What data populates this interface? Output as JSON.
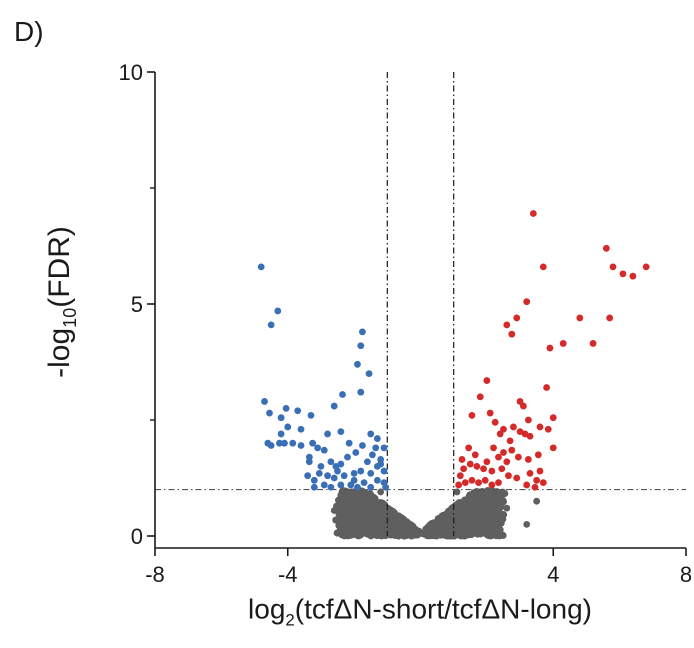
{
  "panel_label": "D)",
  "chart_data": {
    "type": "scatter",
    "title": "",
    "xlabel": {
      "pre": "log",
      "sub": "2",
      "post": "(tcfΔN-short/tcfΔN-long)"
    },
    "ylabel": {
      "pre": "-log",
      "sub": "10",
      "post": "(FDR)"
    },
    "xlim": [
      -8,
      8
    ],
    "ylim": [
      0,
      10
    ],
    "x_ticks": [
      -8,
      -4,
      4,
      8
    ],
    "x_tick_labels": [
      "-8",
      "-4",
      "4",
      "8"
    ],
    "y_ticks": [
      0,
      5,
      10
    ],
    "y_tick_labels": [
      "0",
      "5",
      "10"
    ],
    "y_minor_ticks": [
      2.5,
      7.5
    ],
    "thresholds": {
      "fold_change_x": [
        -1,
        1
      ],
      "fdr_y": 1.0
    },
    "colors": {
      "down": "#3a6fb5",
      "up": "#d42a2a",
      "ns": "#5f5f5f",
      "axis": "#1a1a1a"
    },
    "series": [
      {
        "key": "down",
        "points": [
          [
            -4.8,
            5.8
          ],
          [
            -4.3,
            4.85
          ],
          [
            -4.5,
            4.55
          ],
          [
            -4.7,
            2.9
          ],
          [
            -4.55,
            2.65
          ],
          [
            -4.2,
            2.55
          ],
          [
            -4.05,
            2.75
          ],
          [
            -3.7,
            2.7
          ],
          [
            -3.3,
            2.6
          ],
          [
            -4.6,
            2.0
          ],
          [
            -4.5,
            1.95
          ],
          [
            -4.25,
            2.0
          ],
          [
            -4.1,
            2.0
          ],
          [
            -3.85,
            2.0
          ],
          [
            -4.2,
            2.2
          ],
          [
            -4.0,
            2.35
          ],
          [
            -3.6,
            2.3
          ],
          [
            -3.25,
            2.0
          ],
          [
            -3.1,
            1.9
          ],
          [
            -2.9,
            1.85
          ],
          [
            -3.35,
            1.7
          ],
          [
            -3.0,
            1.5
          ],
          [
            -2.7,
            1.6
          ],
          [
            -2.4,
            1.55
          ],
          [
            -2.2,
            1.7
          ],
          [
            -2.5,
            1.4
          ],
          [
            -3.2,
            1.2
          ],
          [
            -2.9,
            1.1
          ],
          [
            -2.6,
            1.25
          ],
          [
            -2.3,
            1.3
          ],
          [
            -2.0,
            1.35
          ],
          [
            -1.8,
            1.4
          ],
          [
            -1.5,
            1.35
          ],
          [
            -1.3,
            1.5
          ],
          [
            -1.1,
            1.4
          ],
          [
            -2.7,
            1.05
          ],
          [
            -2.1,
            1.1
          ],
          [
            -1.7,
            1.15
          ],
          [
            -1.3,
            1.2
          ],
          [
            -1.1,
            1.15
          ],
          [
            -1.05,
            1.05
          ],
          [
            -1.5,
            1.05
          ],
          [
            -1.9,
            1.05
          ],
          [
            -2.4,
            1.1
          ],
          [
            -3.4,
            1.3
          ],
          [
            -3.2,
            1.05
          ],
          [
            -2.8,
            1.3
          ],
          [
            -1.6,
            1.6
          ],
          [
            -1.45,
            1.75
          ],
          [
            -1.2,
            1.65
          ],
          [
            -1.1,
            1.9
          ],
          [
            -1.35,
            1.9
          ],
          [
            -1.75,
            1.95
          ],
          [
            -1.95,
            1.8
          ],
          [
            -2.15,
            2.0
          ],
          [
            -2.4,
            2.25
          ],
          [
            -2.6,
            2.8
          ],
          [
            -2.35,
            3.05
          ],
          [
            -1.8,
            3.1
          ],
          [
            -1.9,
            3.7
          ],
          [
            -1.55,
            3.5
          ],
          [
            -1.8,
            4.1
          ],
          [
            -1.75,
            4.4
          ],
          [
            -1.5,
            2.2
          ],
          [
            -1.3,
            2.1
          ],
          [
            -1.2,
            1.55
          ],
          [
            -2.0,
            1.2
          ],
          [
            -2.55,
            1.5
          ],
          [
            -2.8,
            2.2
          ],
          [
            -3.6,
            1.95
          ],
          [
            -3.05,
            1.35
          ],
          [
            -3.35,
            1.6
          ]
        ]
      },
      {
        "key": "up",
        "points": [
          [
            3.4,
            6.95
          ],
          [
            5.6,
            6.2
          ],
          [
            5.8,
            5.8
          ],
          [
            6.1,
            5.65
          ],
          [
            6.4,
            5.6
          ],
          [
            6.8,
            5.8
          ],
          [
            3.7,
            5.8
          ],
          [
            3.2,
            5.05
          ],
          [
            2.9,
            4.7
          ],
          [
            2.6,
            4.55
          ],
          [
            2.75,
            4.35
          ],
          [
            4.8,
            4.7
          ],
          [
            5.7,
            4.7
          ],
          [
            5.2,
            4.15
          ],
          [
            4.3,
            4.15
          ],
          [
            3.9,
            4.05
          ],
          [
            3.8,
            3.2
          ],
          [
            2.0,
            3.35
          ],
          [
            1.8,
            3.0
          ],
          [
            2.1,
            2.65
          ],
          [
            1.55,
            2.6
          ],
          [
            2.25,
            2.45
          ],
          [
            2.5,
            2.3
          ],
          [
            2.8,
            2.35
          ],
          [
            3.0,
            2.9
          ],
          [
            3.1,
            2.8
          ],
          [
            3.25,
            2.5
          ],
          [
            3.6,
            2.35
          ],
          [
            4.0,
            2.55
          ],
          [
            3.85,
            2.3
          ],
          [
            2.4,
            2.2
          ],
          [
            2.7,
            2.05
          ],
          [
            3.0,
            2.25
          ],
          [
            3.3,
            2.15
          ],
          [
            3.15,
            2.2
          ],
          [
            2.2,
            1.9
          ],
          [
            2.5,
            1.8
          ],
          [
            2.75,
            1.85
          ],
          [
            2.95,
            1.7
          ],
          [
            3.25,
            1.65
          ],
          [
            3.55,
            1.75
          ],
          [
            1.5,
            1.55
          ],
          [
            1.7,
            1.5
          ],
          [
            1.9,
            1.45
          ],
          [
            2.15,
            1.4
          ],
          [
            2.45,
            1.45
          ],
          [
            1.3,
            1.45
          ],
          [
            1.2,
            1.3
          ],
          [
            1.15,
            1.1
          ],
          [
            1.35,
            1.15
          ],
          [
            1.55,
            1.2
          ],
          [
            1.75,
            1.15
          ],
          [
            1.95,
            1.2
          ],
          [
            2.15,
            1.1
          ],
          [
            2.35,
            1.15
          ],
          [
            2.65,
            1.3
          ],
          [
            2.9,
            1.25
          ],
          [
            3.2,
            1.1
          ],
          [
            3.45,
            1.05
          ],
          [
            3.7,
            1.15
          ],
          [
            1.25,
            1.65
          ],
          [
            1.45,
            1.9
          ],
          [
            1.65,
            1.75
          ],
          [
            2.0,
            1.6
          ],
          [
            2.35,
            1.7
          ],
          [
            3.6,
            1.4
          ],
          [
            3.3,
            1.35
          ],
          [
            2.6,
            1.6
          ],
          [
            3.5,
            1.2
          ],
          [
            4.0,
            1.9
          ]
        ]
      },
      {
        "key": "ns",
        "points": [
          [
            3.5,
            0.75
          ],
          [
            3.2,
            0.25
          ],
          [
            -2.1,
            0.85
          ],
          [
            -1.2,
            0.95
          ],
          [
            1.1,
            0.95
          ],
          [
            2.0,
            0.8
          ],
          [
            2.6,
            0.6
          ],
          [
            -2.6,
            0.55
          ],
          [
            1.7,
            0.4
          ],
          [
            -1.7,
            0.3
          ],
          [
            0.2,
            0.05
          ],
          [
            -0.1,
            0.1
          ],
          [
            0.5,
            0.15
          ],
          [
            -0.5,
            0.2
          ],
          [
            0.9,
            0.25
          ],
          [
            -0.9,
            0.3
          ]
        ]
      }
    ]
  }
}
